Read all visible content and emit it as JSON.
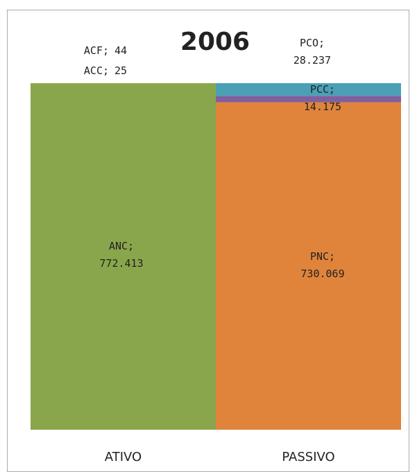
{
  "chart_data": {
    "type": "stacked-bar",
    "title": "2006",
    "categories": [
      "ATIVO",
      "PASSIVO"
    ],
    "label_separator": ";",
    "series": [
      {
        "name": "ANC",
        "color": "#8aa64c",
        "values": [
          772413,
          null
        ],
        "value_labels": [
          "772.413",
          null
        ]
      },
      {
        "name": "ACC",
        "color": "#c0504d",
        "values": [
          25,
          null
        ],
        "value_labels": [
          "25",
          null
        ]
      },
      {
        "name": "ACF",
        "color": "#9bbb59",
        "values": [
          44,
          null
        ],
        "value_labels": [
          "44",
          null
        ]
      },
      {
        "name": "PNC",
        "color": "#e0843c",
        "values": [
          null,
          730069
        ],
        "value_labels": [
          null,
          "730.069"
        ]
      },
      {
        "name": "PCC",
        "color": "#7f5f9f",
        "values": [
          null,
          14175
        ],
        "value_labels": [
          null,
          "14.175"
        ]
      },
      {
        "name": "PCO",
        "color": "#4aa0b5",
        "values": [
          null,
          28237
        ],
        "value_labels": [
          null,
          "28.237"
        ]
      }
    ]
  }
}
